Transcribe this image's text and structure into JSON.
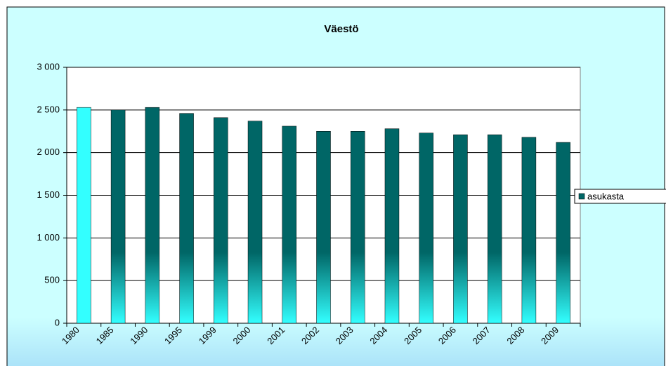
{
  "chart_data": {
    "type": "bar",
    "title": "Väestö",
    "categories": [
      "1980",
      "1985",
      "1990",
      "1995",
      "1999",
      "2000",
      "2001",
      "2002",
      "2003",
      "2004",
      "2005",
      "2006",
      "2007",
      "2008",
      "2009"
    ],
    "series": [
      {
        "name": "asukasta",
        "color": "#006666",
        "point_colors": [
          "#33ffff",
          "#006666",
          "#006666",
          "#006666",
          "#006666",
          "#006666",
          "#006666",
          "#006666",
          "#006666",
          "#006666",
          "#006666",
          "#006666",
          "#006666",
          "#006666",
          "#006666"
        ],
        "values": [
          2530,
          2500,
          2530,
          2460,
          2410,
          2370,
          2310,
          2250,
          2250,
          2280,
          2230,
          2210,
          2210,
          2180,
          2120
        ]
      }
    ],
    "ylim": [
      0,
      3000
    ],
    "yticks": [
      0,
      500,
      {
        "value": 1000,
        "label": "1 000"
      },
      {
        "value": 1500,
        "label": "1 500"
      },
      {
        "value": 2000,
        "label": "2 000"
      },
      {
        "value": 2500,
        "label": "2 500"
      },
      {
        "value": 3000,
        "label": "3 000"
      }
    ],
    "grid": true,
    "legend": "right"
  }
}
